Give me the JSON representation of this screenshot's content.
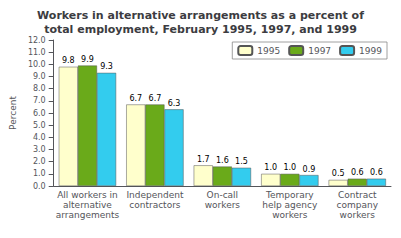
{
  "chart_data": {
    "type": "bar",
    "title": "Workers in alternative arrangements as a percent of\ntotal employment, February 1995, 1997, and 1999",
    "categories": [
      "All workers in\nalternative\narrangements",
      "Independent\ncontractors",
      "On-call\nworkers",
      "Temporary\nhelp agency\nworkers",
      "Contract\ncompany\nworkers"
    ],
    "series": [
      {
        "name": "1995",
        "color": "#ffffcc",
        "values": [
          9.8,
          6.7,
          1.7,
          1.0,
          0.5
        ],
        "value_labels": [
          "9.8",
          "6.7",
          "1.7",
          "1.0",
          "0.5"
        ]
      },
      {
        "name": "1997",
        "color": "#6aaa1a",
        "values": [
          9.9,
          6.7,
          1.6,
          1.0,
          0.6
        ],
        "value_labels": [
          "9.9",
          "6.7",
          "1.6",
          "1.0",
          "0.6"
        ]
      },
      {
        "name": "1999",
        "color": "#33ccee",
        "values": [
          9.3,
          6.3,
          1.5,
          0.9,
          0.6
        ],
        "value_labels": [
          "9.3",
          "6.3",
          "1.5",
          "0.9",
          "0.6"
        ]
      }
    ],
    "ylabel": "Percent",
    "ylim": [
      0,
      12
    ],
    "yticks": [
      {
        "value": 0,
        "label": "0.0"
      },
      {
        "value": 1,
        "label": "1.0"
      },
      {
        "value": 2,
        "label": "2.0"
      },
      {
        "value": 3,
        "label": "3.0"
      },
      {
        "value": 4,
        "label": "4.0"
      },
      {
        "value": 5,
        "label": "5.0"
      },
      {
        "value": 6,
        "label": "6.0"
      },
      {
        "value": 7,
        "label": "7.0"
      },
      {
        "value": 8,
        "label": "8.0"
      },
      {
        "value": 9,
        "label": "9.0"
      },
      {
        "value": 10,
        "label": "10.0"
      },
      {
        "value": 11,
        "label": "11.0"
      },
      {
        "value": 12,
        "label": "12.0"
      }
    ],
    "grid": false,
    "legend": "upper right",
    "data_labels": true
  }
}
